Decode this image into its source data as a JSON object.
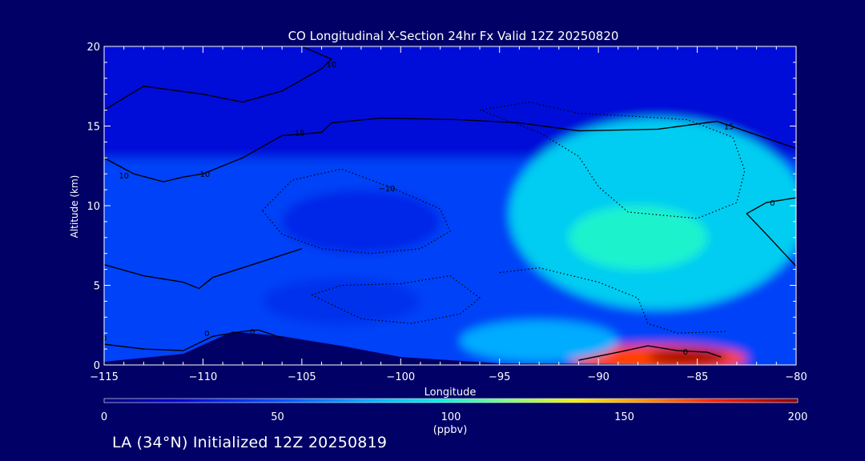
{
  "footer": {
    "caption": "LA (34°N) Initialized 12Z 20250819"
  },
  "chart_data": {
    "type": "heatmap",
    "title": "CO Longitudinal X-Section 24hr  Fx Valid 12Z 20250820",
    "xlabel": "Longitude",
    "ylabel": "Altitude (km)",
    "xlim": [
      -115,
      -80
    ],
    "ylim": [
      0,
      20
    ],
    "x_ticks": [
      -115,
      -110,
      -105,
      -100,
      -95,
      -90,
      -85,
      -80
    ],
    "x_tick_labels": [
      "−115",
      "−110",
      "−105",
      "−100",
      "−95",
      "−90",
      "−85",
      "−80"
    ],
    "y_ticks": [
      0,
      5,
      10,
      15,
      20
    ],
    "y_tick_labels": [
      "0",
      "5",
      "10",
      "15",
      "20"
    ],
    "colorbar": {
      "label": "(ppbv)",
      "range": [
        0,
        200
      ],
      "ticks": [
        0,
        50,
        100,
        150,
        200
      ],
      "tick_labels": [
        "0",
        "50",
        "100",
        "150",
        "200"
      ]
    },
    "contour_labels": [
      {
        "text": "0",
        "lon": -115,
        "alt": 1.7
      },
      {
        "text": "0",
        "lon": -109.8,
        "alt": 2.0
      },
      {
        "text": "0",
        "lon": -107.5,
        "alt": 2.1
      },
      {
        "text": "0",
        "lon": -85.6,
        "alt": 0.85
      },
      {
        "text": "0",
        "lon": -81.2,
        "alt": 10.2
      },
      {
        "text": "10",
        "lon": -114.0,
        "alt": 11.9
      },
      {
        "text": "10",
        "lon": -109.9,
        "alt": 12.0
      },
      {
        "text": "15",
        "lon": -105.1,
        "alt": 14.6
      },
      {
        "text": "15",
        "lon": -83.4,
        "alt": 15.0
      },
      {
        "text": "10",
        "lon": -103.5,
        "alt": 18.9
      },
      {
        "text": "−10",
        "lon": -100.7,
        "alt": 11.1
      }
    ],
    "field": {
      "background": 45,
      "upper_layer": {
        "from_km": 13,
        "to_km": 20,
        "value": 25
      },
      "blobs": [
        {
          "lon": -87,
          "alt": 9.5,
          "rx": 7.5,
          "ry": 6,
          "value": 85
        },
        {
          "lon": -88,
          "alt": 8,
          "rx": 3.5,
          "ry": 2,
          "value": 100
        },
        {
          "lon": -87,
          "alt": 0.4,
          "rx": 4.5,
          "ry": 0.9,
          "value": 170
        },
        {
          "lon": -85.5,
          "alt": 0.5,
          "rx": 2,
          "ry": 0.5,
          "value": 195
        },
        {
          "lon": -102,
          "alt": 9,
          "rx": 4,
          "ry": 2,
          "value": 35
        },
        {
          "lon": -103,
          "alt": 4,
          "rx": 4,
          "ry": 1.5,
          "value": 38
        },
        {
          "lon": -93,
          "alt": 1.5,
          "rx": 4,
          "ry": 1.3,
          "value": 75
        }
      ],
      "terrain_km": [
        [
          -115,
          0.2
        ],
        [
          -111,
          0.7
        ],
        [
          -108.5,
          2.1
        ],
        [
          -106,
          1.8
        ],
        [
          -103,
          1.2
        ],
        [
          -100,
          0.5
        ],
        [
          -95,
          0.1
        ],
        [
          -80,
          0
        ]
      ]
    }
  }
}
